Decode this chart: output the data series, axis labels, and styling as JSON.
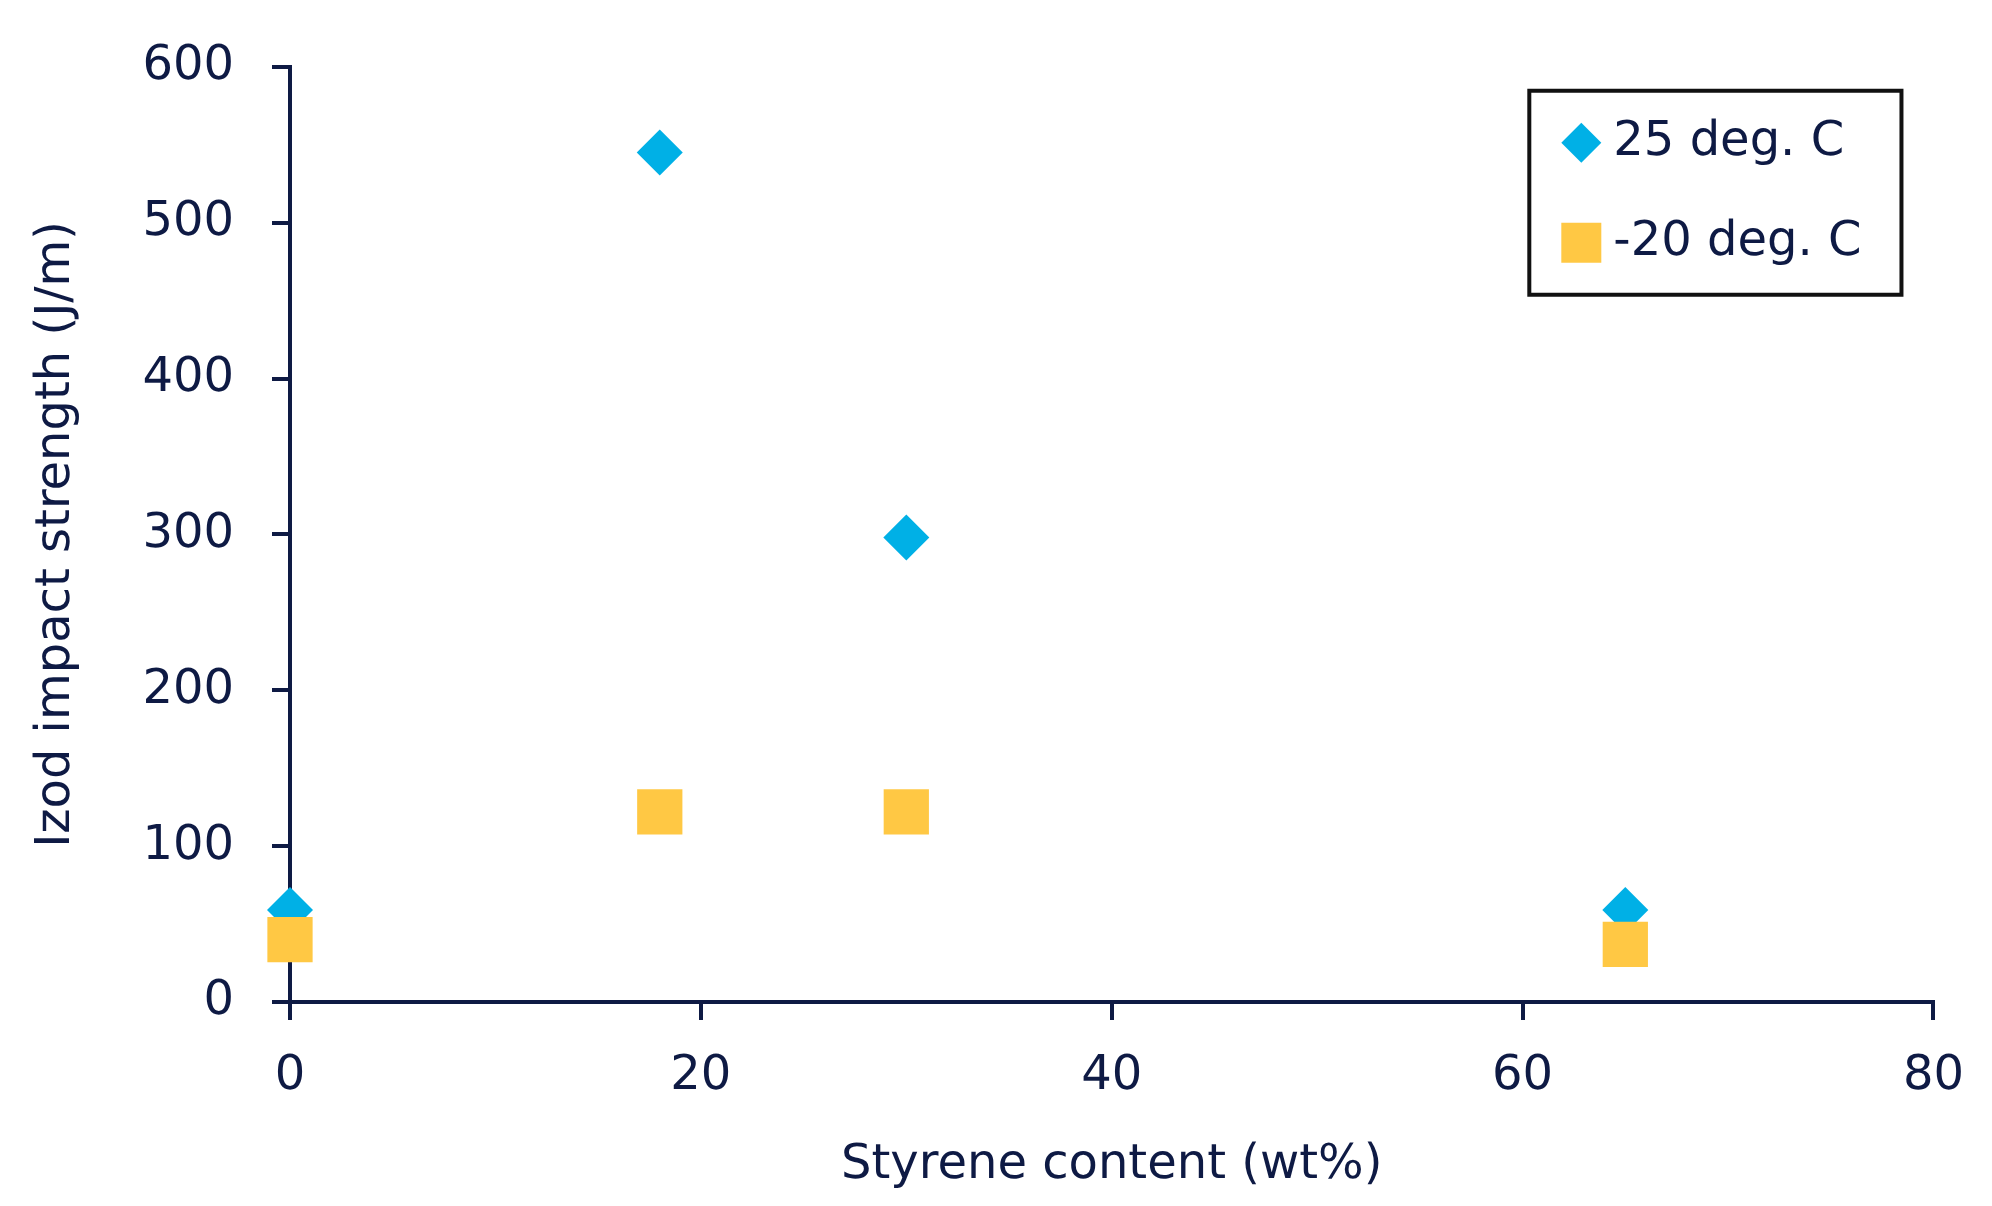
{
  "chart_data": {
    "type": "scatter",
    "xlabel": "Styrene content (wt%)",
    "ylabel": "Izod impact strength (J/m)",
    "xlim": [
      0,
      80
    ],
    "xticks": [
      0,
      20,
      40,
      60,
      80
    ],
    "ylim": [
      0,
      600
    ],
    "yticks": [
      0,
      100,
      200,
      300,
      400,
      500,
      600
    ],
    "grid": false,
    "legend": "top right",
    "series": [
      {
        "name": "25 deg. C",
        "color": "#00b0e6",
        "marker": "diamond",
        "x": [
          0,
          18,
          30,
          65
        ],
        "values": [
          59,
          545,
          298,
          59
        ]
      },
      {
        "name": "-20 deg. C",
        "color": "#ffc844",
        "marker": "square",
        "x": [
          0,
          18,
          30,
          65
        ],
        "values": [
          40,
          122,
          122,
          37
        ]
      }
    ]
  }
}
